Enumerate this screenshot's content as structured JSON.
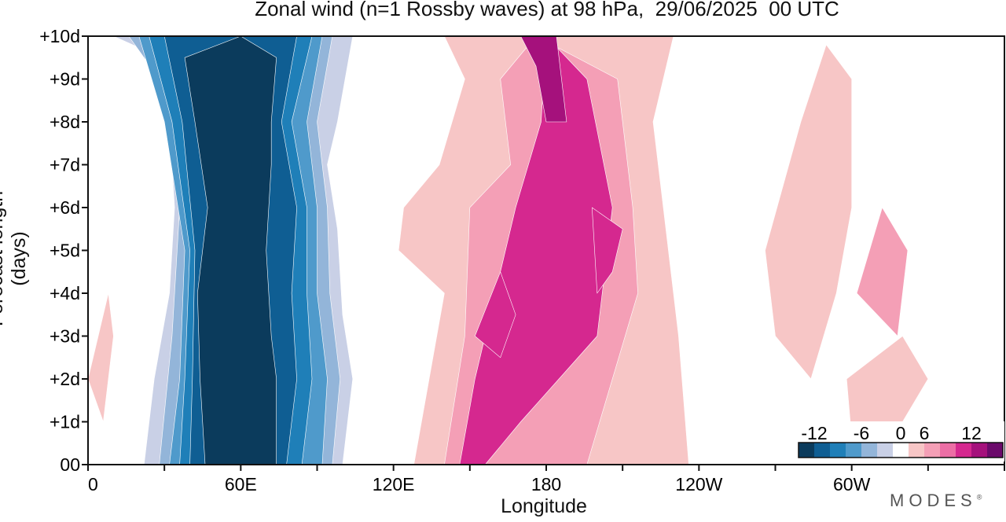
{
  "title": "Zonal wind (n=1 Rossby waves) at 98 hPa,  29/06/2025  00 UTC",
  "brand": "MODES",
  "brand_mark": "®",
  "chart_data": {
    "type": "heatmap",
    "title": "Zonal wind (n=1 Rossby waves) at 98 hPa,  29/06/2025  00 UTC",
    "xlabel": "Longitude",
    "ylabel": "Forecast length (days)",
    "x_ticks": [
      "0",
      "60E",
      "120E",
      "180",
      "120W",
      "60W"
    ],
    "x_tick_values": [
      0,
      60,
      120,
      180,
      240,
      300
    ],
    "xlim": [
      0,
      360
    ],
    "y_ticks": [
      "00",
      "+1d",
      "+2d",
      "+3d",
      "+4d",
      "+5d",
      "+6d",
      "+7d",
      "+8d",
      "+9d",
      "+10d"
    ],
    "ylim": [
      0,
      10
    ],
    "colorbar": {
      "tick_labels": [
        "-12",
        "-6",
        "0",
        "6",
        "12"
      ],
      "tick_values": [
        -12,
        -6,
        0,
        6,
        12
      ],
      "levels": [
        -14,
        -12,
        -10,
        -8,
        -6,
        -4,
        -2,
        2,
        4,
        6,
        8,
        10,
        12,
        14
      ],
      "colors": [
        "#0b3b5c",
        "#0f5e93",
        "#1f7fb8",
        "#4f9acb",
        "#93b5d9",
        "#c9d0e6",
        "#ffffff",
        "#f7c6c6",
        "#f49fb6",
        "#ec6ea5",
        "#d5288f",
        "#a5117c",
        "#6b0a6b"
      ]
    },
    "grid": false,
    "legend": "bottom-right colorbar",
    "bands": [
      {
        "value": -3,
        "points": [
          [
            10,
            10
          ],
          [
            25,
            9.6
          ],
          [
            32,
            8
          ],
          [
            34,
            6
          ],
          [
            32,
            4
          ],
          [
            26,
            2
          ],
          [
            22,
            0
          ],
          [
            100,
            0
          ],
          [
            104,
            2
          ],
          [
            100,
            3.5
          ],
          [
            98,
            5.5
          ],
          [
            94,
            7
          ],
          [
            98,
            8
          ],
          [
            104,
            10
          ]
        ]
      },
      {
        "value": -5,
        "points": [
          [
            16,
            10
          ],
          [
            28,
            9
          ],
          [
            36,
            6
          ],
          [
            33,
            3
          ],
          [
            28,
            0
          ],
          [
            96,
            0
          ],
          [
            99,
            2
          ],
          [
            95,
            4
          ],
          [
            94,
            6
          ],
          [
            90,
            8
          ],
          [
            96,
            10
          ]
        ]
      },
      {
        "value": -7,
        "points": [
          [
            20,
            10
          ],
          [
            30,
            8
          ],
          [
            38,
            5
          ],
          [
            36,
            2
          ],
          [
            32,
            0
          ],
          [
            92,
            0
          ],
          [
            94,
            2
          ],
          [
            90,
            4
          ],
          [
            90,
            6
          ],
          [
            86,
            8
          ],
          [
            92,
            10
          ]
        ]
      },
      {
        "value": -9,
        "points": [
          [
            24,
            10
          ],
          [
            33,
            8
          ],
          [
            40,
            5
          ],
          [
            38,
            2
          ],
          [
            36,
            0
          ],
          [
            84,
            0
          ],
          [
            88,
            2
          ],
          [
            86,
            4
          ],
          [
            86,
            6
          ],
          [
            80,
            8
          ],
          [
            88,
            10
          ]
        ]
      },
      {
        "value": -11,
        "points": [
          [
            30,
            10
          ],
          [
            37,
            8
          ],
          [
            42,
            5
          ],
          [
            41,
            2
          ],
          [
            40,
            0
          ],
          [
            78,
            0
          ],
          [
            82,
            2
          ],
          [
            80,
            4
          ],
          [
            82,
            6
          ],
          [
            76,
            8
          ],
          [
            82,
            10
          ]
        ]
      },
      {
        "value": -13,
        "points": [
          [
            38,
            9.5
          ],
          [
            42,
            8
          ],
          [
            47,
            6
          ],
          [
            43,
            4
          ],
          [
            44,
            2
          ],
          [
            46,
            0
          ],
          [
            74,
            0
          ],
          [
            74,
            2
          ],
          [
            72,
            3
          ],
          [
            70,
            5
          ],
          [
            72,
            7
          ],
          [
            72,
            8
          ],
          [
            74,
            9.5
          ],
          [
            60,
            10
          ]
        ]
      },
      {
        "value": 3,
        "points": [
          [
            128,
            0
          ],
          [
            140,
            4
          ],
          [
            122,
            5
          ],
          [
            124,
            6
          ],
          [
            138,
            7
          ],
          [
            148,
            9
          ],
          [
            140,
            10
          ],
          [
            230,
            10
          ],
          [
            222,
            8
          ],
          [
            226,
            6
          ],
          [
            232,
            3
          ],
          [
            236,
            0
          ]
        ]
      },
      {
        "value": 5,
        "points": [
          [
            140,
            0
          ],
          [
            148,
            3
          ],
          [
            150,
            6
          ],
          [
            166,
            7
          ],
          [
            162,
            9
          ],
          [
            176,
            10
          ],
          [
            208,
            9
          ],
          [
            214,
            6
          ],
          [
            216,
            4
          ],
          [
            196,
            0
          ]
        ]
      },
      {
        "value": 8,
        "points": [
          [
            146,
            0
          ],
          [
            152,
            2
          ],
          [
            160,
            4
          ],
          [
            168,
            6
          ],
          [
            178,
            8
          ],
          [
            180,
            10
          ],
          [
            196,
            9
          ],
          [
            206,
            6
          ],
          [
            200,
            3
          ],
          [
            170,
            1
          ],
          [
            156,
            0
          ]
        ]
      },
      {
        "value": 11,
        "points": [
          [
            170,
            10
          ],
          [
            184,
            10
          ],
          [
            188,
            8
          ],
          [
            180,
            8
          ],
          [
            176,
            9.3
          ]
        ]
      },
      {
        "value": 9,
        "points": [
          [
            198,
            6
          ],
          [
            210,
            5.5
          ],
          [
            206,
            4.5
          ],
          [
            200,
            4
          ]
        ]
      },
      {
        "value": 9,
        "points": [
          [
            152,
            3
          ],
          [
            162,
            4.5
          ],
          [
            168,
            3.5
          ],
          [
            162,
            2.5
          ]
        ]
      },
      {
        "value": 3,
        "points": [
          [
            298,
            2
          ],
          [
            320,
            3
          ],
          [
            330,
            2
          ],
          [
            320,
            1
          ],
          [
            300,
            0.6
          ]
        ]
      },
      {
        "value": 3,
        "points": [
          [
            266,
            5
          ],
          [
            280,
            8
          ],
          [
            290,
            9.8
          ],
          [
            300,
            9
          ],
          [
            300,
            6
          ],
          [
            294,
            4
          ],
          [
            284,
            2
          ],
          [
            270,
            3
          ]
        ]
      },
      {
        "value": 5,
        "points": [
          [
            302,
            4
          ],
          [
            318,
            3
          ],
          [
            322,
            5
          ],
          [
            312,
            6
          ]
        ]
      },
      {
        "value": 3,
        "points": [
          [
            0,
            2
          ],
          [
            8,
            4
          ],
          [
            10,
            3
          ],
          [
            6,
            1
          ]
        ]
      }
    ]
  }
}
